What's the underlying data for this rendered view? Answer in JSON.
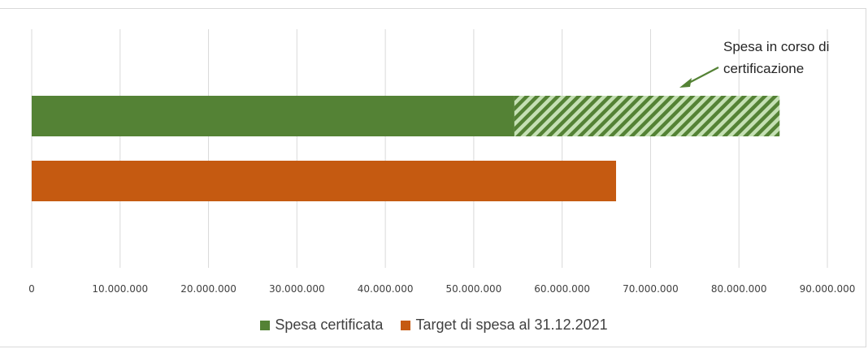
{
  "chart_data": {
    "type": "bar",
    "orientation": "horizontal",
    "xlim": [
      0,
      90000000
    ],
    "tick_values": [
      0,
      10000000,
      20000000,
      30000000,
      40000000,
      50000000,
      60000000,
      70000000,
      80000000,
      90000000
    ],
    "tick_labels": [
      "0",
      "10.000.000",
      "20.000.000",
      "30.000.000",
      "40.000.000",
      "50.000.000",
      "60.000.000",
      "70.000.000",
      "80.000.000",
      "90.000.000"
    ],
    "grid": true,
    "legend_position": "bottom",
    "series": [
      {
        "name": "Spesa certificata",
        "color": "#548235",
        "value": 54600000
      },
      {
        "name": "Target di spesa al 31.12.2021",
        "color": "#c55a11",
        "value": 66100000
      }
    ],
    "hatched_segment": {
      "start": 54600000,
      "end": 84600000,
      "color": "#548235",
      "light_color": "#c5e0b4"
    },
    "annotation": {
      "lines": [
        "Spesa in corso di",
        "certificazione"
      ]
    }
  }
}
